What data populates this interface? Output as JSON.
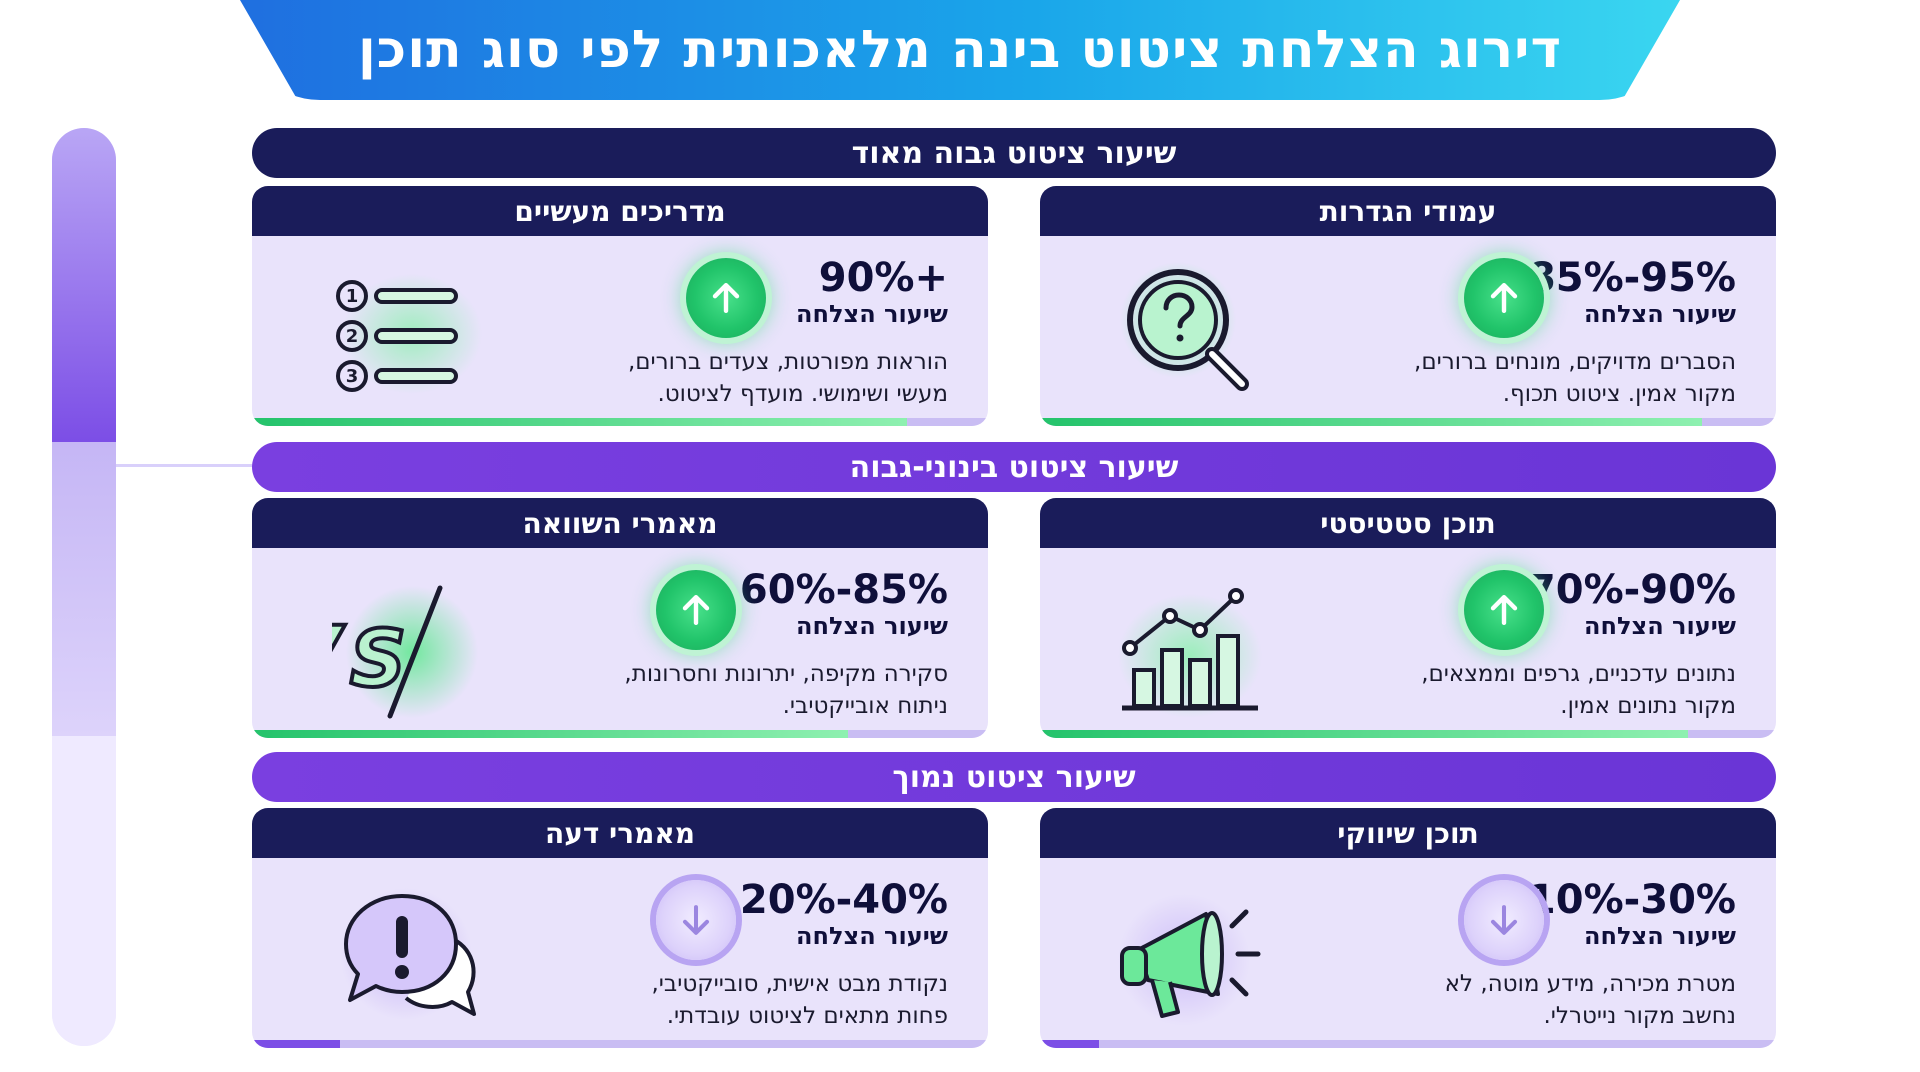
{
  "title": "דירוג הצלחת ציטוט בינה מלאכותית לפי סוג תוכן",
  "tiers": {
    "very_high": "שיעור ציטוט גבוה מאוד",
    "medium_high": "שיעור ציטוט בינוני-גבוה",
    "low": "שיעור ציטוט נמוך"
  },
  "cards": {
    "definitions": {
      "title": "עמודי הגדרות",
      "rate": "85%-95%",
      "rate_label": "שיעור הצלחה",
      "desc_line1": "הסברים מדויקים, מונחים ברורים,",
      "desc_line2": "מקור אמין. ציטוט תכוף.",
      "icon": "magnifier-question-icon",
      "trend": "up",
      "progress": 0.9
    },
    "guides": {
      "title": "מדריכים מעשיים",
      "rate": "90%+",
      "rate_label": "שיעור הצלחה",
      "desc_line1": "הוראות מפורטות, צעדים ברורים,",
      "desc_line2": "מעשי ושימושי. מועדף לציטוט.",
      "icon": "numbered-list-icon",
      "trend": "up",
      "progress": 0.89
    },
    "statistical": {
      "title": "תוכן סטטיסטי",
      "rate": "70%-90%",
      "rate_label": "שיעור הצלחה",
      "desc_line1": "נתונים עדכניים, גרפים וממצאים,",
      "desc_line2": "מקור נתונים אמין.",
      "icon": "bar-line-chart-icon",
      "trend": "up",
      "progress": 0.88
    },
    "comparison": {
      "title": "מאמרי השוואה",
      "rate": "60%-85%",
      "rate_label": "שיעור הצלחה",
      "desc_line1": "סקירה מקיפה, יתרונות וחסרונות,",
      "desc_line2": "ניתוח אובייקטיבי.",
      "icon": "vs-icon",
      "trend": "up",
      "progress": 0.81
    },
    "marketing": {
      "title": "תוכן שיווקי",
      "rate": "10%-30%",
      "rate_label": "שיעור הצלחה",
      "desc_line1": "מטרת מכירה, מידע מוטה, לא",
      "desc_line2": "נחשב מקור נייטרלי.",
      "icon": "megaphone-icon",
      "trend": "down",
      "progress": 0.08
    },
    "opinion": {
      "title": "מאמרי דעה",
      "rate": "20%-40%",
      "rate_label": "שיעור הצלחה",
      "desc_line1": "נקודת מבט אישית, סובייקטיבי,",
      "desc_line2": "פחות מתאים לציטוט עובדתי.",
      "icon": "speech-bubble-exclamation-icon",
      "trend": "down",
      "progress": 0.12
    }
  },
  "colors": {
    "navy": "#1a1c5a",
    "purple": "#6a35d6",
    "green": "#21c46a",
    "card_bg": "#e9e3fb"
  }
}
